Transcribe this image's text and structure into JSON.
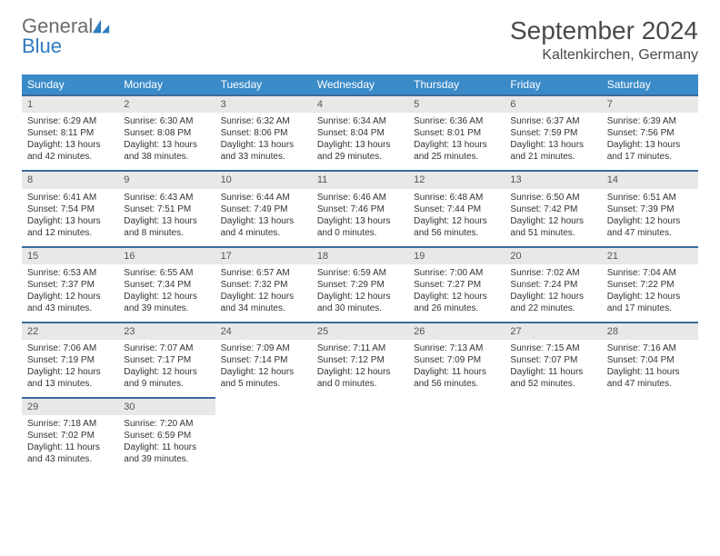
{
  "logo": {
    "text1": "General",
    "text2": "Blue"
  },
  "title": {
    "month": "September 2024",
    "location": "Kaltenkirchen, Germany"
  },
  "dayNames": [
    "Sunday",
    "Monday",
    "Tuesday",
    "Wednesday",
    "Thursday",
    "Friday",
    "Saturday"
  ],
  "colors": {
    "headerBg": "#3b8bc9",
    "dayNumBg": "#e8e8e8",
    "dayNumBorder": "#3b6b9a"
  },
  "weeks": [
    [
      {
        "n": "1",
        "sr": "6:29 AM",
        "ss": "8:11 PM",
        "dl": "13 hours and 42 minutes."
      },
      {
        "n": "2",
        "sr": "6:30 AM",
        "ss": "8:08 PM",
        "dl": "13 hours and 38 minutes."
      },
      {
        "n": "3",
        "sr": "6:32 AM",
        "ss": "8:06 PM",
        "dl": "13 hours and 33 minutes."
      },
      {
        "n": "4",
        "sr": "6:34 AM",
        "ss": "8:04 PM",
        "dl": "13 hours and 29 minutes."
      },
      {
        "n": "5",
        "sr": "6:36 AM",
        "ss": "8:01 PM",
        "dl": "13 hours and 25 minutes."
      },
      {
        "n": "6",
        "sr": "6:37 AM",
        "ss": "7:59 PM",
        "dl": "13 hours and 21 minutes."
      },
      {
        "n": "7",
        "sr": "6:39 AM",
        "ss": "7:56 PM",
        "dl": "13 hours and 17 minutes."
      }
    ],
    [
      {
        "n": "8",
        "sr": "6:41 AM",
        "ss": "7:54 PM",
        "dl": "13 hours and 12 minutes."
      },
      {
        "n": "9",
        "sr": "6:43 AM",
        "ss": "7:51 PM",
        "dl": "13 hours and 8 minutes."
      },
      {
        "n": "10",
        "sr": "6:44 AM",
        "ss": "7:49 PM",
        "dl": "13 hours and 4 minutes."
      },
      {
        "n": "11",
        "sr": "6:46 AM",
        "ss": "7:46 PM",
        "dl": "13 hours and 0 minutes."
      },
      {
        "n": "12",
        "sr": "6:48 AM",
        "ss": "7:44 PM",
        "dl": "12 hours and 56 minutes."
      },
      {
        "n": "13",
        "sr": "6:50 AM",
        "ss": "7:42 PM",
        "dl": "12 hours and 51 minutes."
      },
      {
        "n": "14",
        "sr": "6:51 AM",
        "ss": "7:39 PM",
        "dl": "12 hours and 47 minutes."
      }
    ],
    [
      {
        "n": "15",
        "sr": "6:53 AM",
        "ss": "7:37 PM",
        "dl": "12 hours and 43 minutes."
      },
      {
        "n": "16",
        "sr": "6:55 AM",
        "ss": "7:34 PM",
        "dl": "12 hours and 39 minutes."
      },
      {
        "n": "17",
        "sr": "6:57 AM",
        "ss": "7:32 PM",
        "dl": "12 hours and 34 minutes."
      },
      {
        "n": "18",
        "sr": "6:59 AM",
        "ss": "7:29 PM",
        "dl": "12 hours and 30 minutes."
      },
      {
        "n": "19",
        "sr": "7:00 AM",
        "ss": "7:27 PM",
        "dl": "12 hours and 26 minutes."
      },
      {
        "n": "20",
        "sr": "7:02 AM",
        "ss": "7:24 PM",
        "dl": "12 hours and 22 minutes."
      },
      {
        "n": "21",
        "sr": "7:04 AM",
        "ss": "7:22 PM",
        "dl": "12 hours and 17 minutes."
      }
    ],
    [
      {
        "n": "22",
        "sr": "7:06 AM",
        "ss": "7:19 PM",
        "dl": "12 hours and 13 minutes."
      },
      {
        "n": "23",
        "sr": "7:07 AM",
        "ss": "7:17 PM",
        "dl": "12 hours and 9 minutes."
      },
      {
        "n": "24",
        "sr": "7:09 AM",
        "ss": "7:14 PM",
        "dl": "12 hours and 5 minutes."
      },
      {
        "n": "25",
        "sr": "7:11 AM",
        "ss": "7:12 PM",
        "dl": "12 hours and 0 minutes."
      },
      {
        "n": "26",
        "sr": "7:13 AM",
        "ss": "7:09 PM",
        "dl": "11 hours and 56 minutes."
      },
      {
        "n": "27",
        "sr": "7:15 AM",
        "ss": "7:07 PM",
        "dl": "11 hours and 52 minutes."
      },
      {
        "n": "28",
        "sr": "7:16 AM",
        "ss": "7:04 PM",
        "dl": "11 hours and 47 minutes."
      }
    ],
    [
      {
        "n": "29",
        "sr": "7:18 AM",
        "ss": "7:02 PM",
        "dl": "11 hours and 43 minutes."
      },
      {
        "n": "30",
        "sr": "7:20 AM",
        "ss": "6:59 PM",
        "dl": "11 hours and 39 minutes."
      },
      null,
      null,
      null,
      null,
      null
    ]
  ],
  "labels": {
    "sunrise": "Sunrise:",
    "sunset": "Sunset:",
    "daylight": "Daylight:"
  }
}
